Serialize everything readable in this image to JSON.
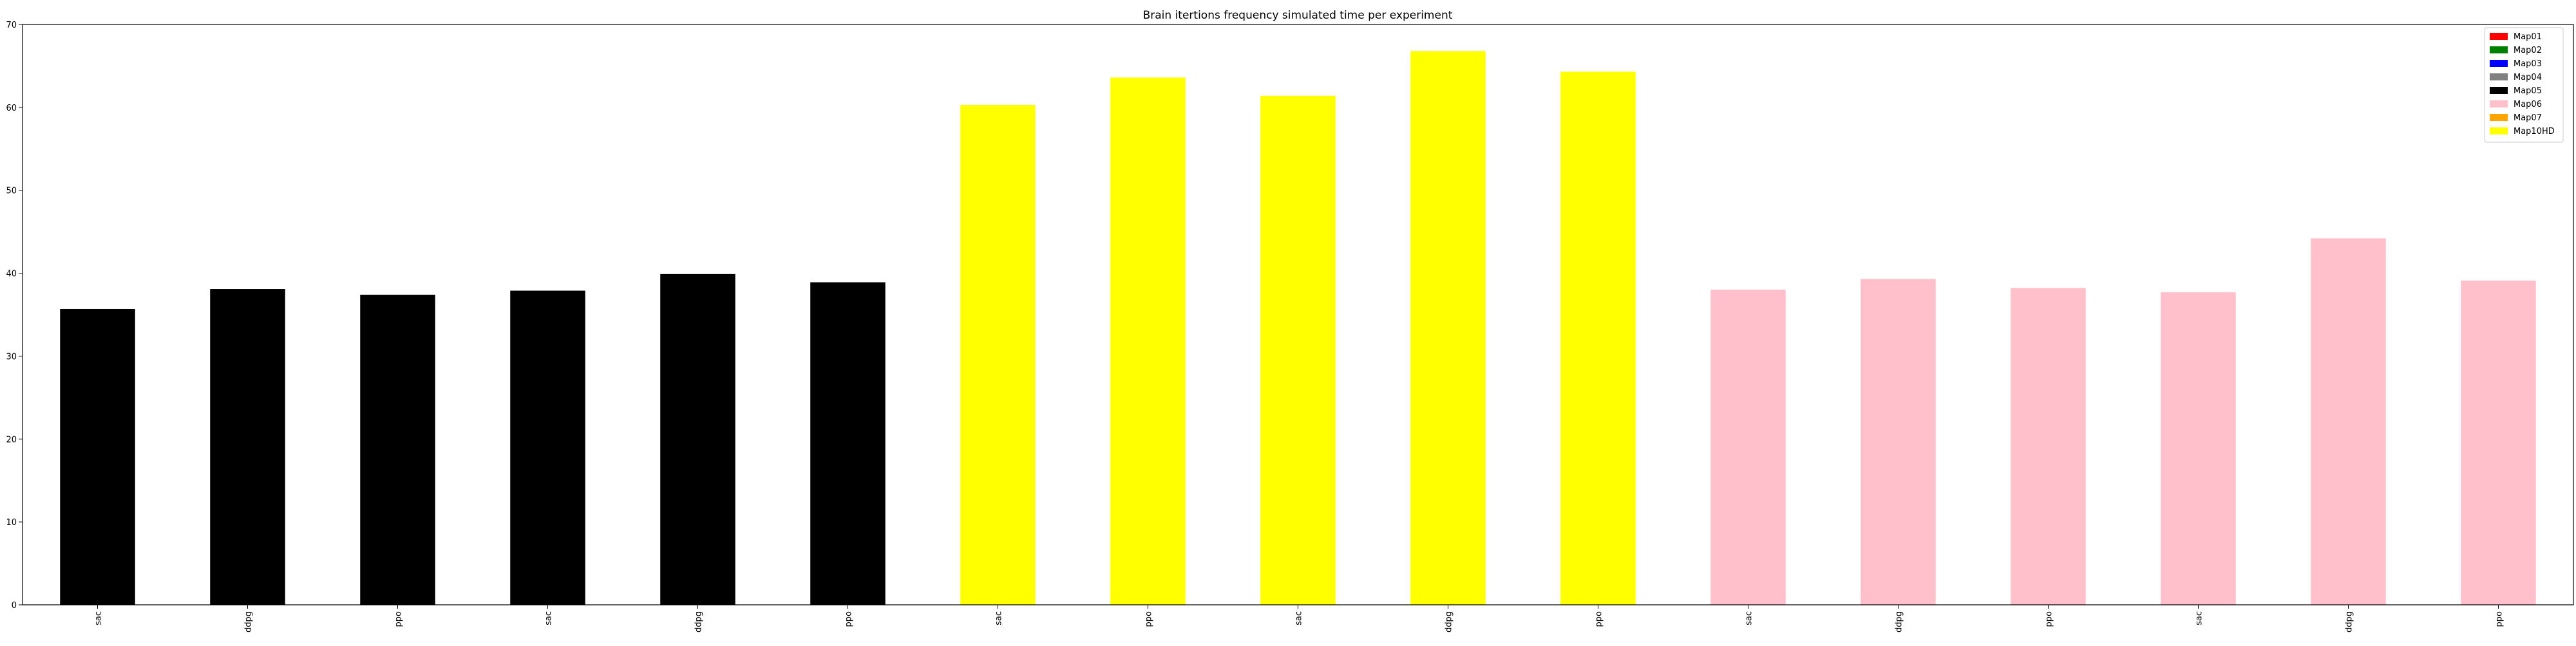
{
  "chart_data": {
    "type": "bar",
    "title": "Brain itertions frequency simulated time per experiment",
    "xlabel": "",
    "ylabel": "",
    "ylim": [
      0,
      70
    ],
    "yticks": [
      0,
      10,
      20,
      30,
      40,
      50,
      60,
      70
    ],
    "grid": false,
    "legend_position": "top-right",
    "legend": [
      {
        "label": "Map01",
        "color": "#ff0000"
      },
      {
        "label": "Map02",
        "color": "#008000"
      },
      {
        "label": "Map03",
        "color": "#0000ff"
      },
      {
        "label": "Map04",
        "color": "#808080"
      },
      {
        "label": "Map05",
        "color": "#000000"
      },
      {
        "label": "Map06",
        "color": "#ffc0cb"
      },
      {
        "label": "Map07",
        "color": "#ffa500"
      },
      {
        "label": "Map10HD",
        "color": "#ffff00"
      }
    ],
    "categories": [
      "sac",
      "ddpg",
      "ppo",
      "sac",
      "ddpg",
      "ppo",
      "sac",
      "ppo",
      "sac",
      "ddpg",
      "ppo",
      "sac",
      "ddpg",
      "ppo",
      "sac",
      "ddpg",
      "ppo"
    ],
    "values": [
      35.7,
      38.1,
      37.4,
      37.9,
      39.9,
      38.9,
      60.3,
      63.6,
      61.4,
      66.8,
      64.3,
      38.0,
      39.3,
      38.2,
      37.7,
      44.2,
      39.1
    ],
    "bar_colors": [
      "#000000",
      "#000000",
      "#000000",
      "#000000",
      "#000000",
      "#000000",
      "#ffff00",
      "#ffff00",
      "#ffff00",
      "#ffff00",
      "#ffff00",
      "#ffc0cb",
      "#ffc0cb",
      "#ffc0cb",
      "#ffc0cb",
      "#ffc0cb",
      "#ffc0cb"
    ]
  }
}
